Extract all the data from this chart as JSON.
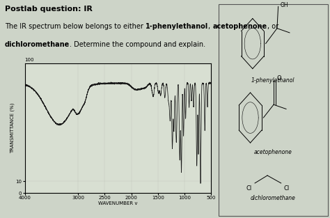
{
  "title": "Postlab question: IR",
  "description_parts": [
    {
      "text": "The IR spectrum below belongs to either ",
      "bold": false
    },
    {
      "text": "1-phenylethanol",
      "bold": true
    },
    {
      "text": ", ",
      "bold": false
    },
    {
      "text": "acetophenone",
      "bold": true
    },
    {
      "text": ", or\n",
      "bold": false
    },
    {
      "text": "dichloromethane",
      "bold": true
    },
    {
      "text": ". Determine the compound and explain.",
      "bold": false
    }
  ],
  "xlabel": "WAVENUMBER v",
  "ylabel": "TRANSMITTANCE (%)",
  "xlim": [
    4000,
    500
  ],
  "ylim": [
    0,
    110
  ],
  "xticks": [
    4000,
    3000,
    2500,
    2000,
    1500,
    1000,
    500
  ],
  "xtick_labels": [
    "4000",
    "3000",
    "2500",
    "2000",
    "1500",
    "1000",
    "500"
  ],
  "bg_color": "#cdd4c8",
  "plot_bg_color": "#d8dfd2",
  "title_fontsize": 8,
  "desc_fontsize": 7,
  "axis_label_fontsize": 5,
  "tick_fontsize": 5,
  "compound_labels": [
    "1-phenylethanol",
    "acetophenone",
    "dichloromethane"
  ]
}
